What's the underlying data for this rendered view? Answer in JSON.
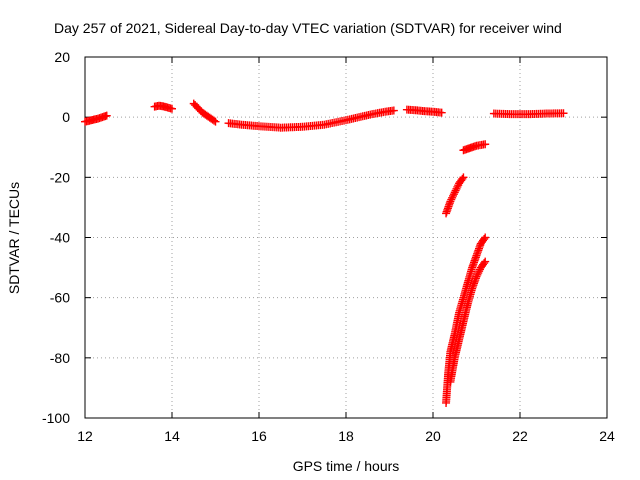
{
  "chart_data": {
    "type": "scatter",
    "title": "Day 257 of 2021, Sidereal Day-to-day VTEC variation (SDTVAR) for receiver wind",
    "xlabel": "GPS time / hours",
    "ylabel": "SDTVAR / TECUs",
    "xlim": [
      12,
      24
    ],
    "ylim": [
      -100,
      20
    ],
    "xticks": [
      "12",
      "14",
      "16",
      "18",
      "20",
      "22",
      "24"
    ],
    "yticks": [
      "20",
      "0",
      "-20",
      "-40",
      "-60",
      "-80",
      "-100"
    ],
    "grid": true,
    "marker": "plus",
    "color": "#ff0000",
    "series": [
      {
        "name": "SDTVAR",
        "segments": [
          {
            "x": [
              12.0,
              12.1,
              12.2,
              12.3,
              12.4,
              12.5
            ],
            "y": [
              -1.5,
              -1.2,
              -0.8,
              -0.5,
              0.0,
              0.5
            ]
          },
          {
            "x": [
              13.6,
              13.7,
              13.8,
              13.9,
              14.0
            ],
            "y": [
              3.5,
              3.8,
              3.6,
              3.2,
              2.8
            ]
          },
          {
            "x": [
              14.5,
              14.6,
              14.7,
              14.8,
              14.9,
              15.0
            ],
            "y": [
              4.5,
              3.0,
              1.5,
              0.5,
              -0.5,
              -1.5
            ]
          },
          {
            "x": [
              15.3,
              15.6,
              16.0,
              16.5,
              17.0,
              17.5,
              18.0,
              18.3,
              18.6,
              18.9,
              19.1
            ],
            "y": [
              -2.0,
              -2.5,
              -3.0,
              -3.5,
              -3.2,
              -2.5,
              -1.0,
              0.0,
              1.0,
              1.8,
              2.2
            ]
          },
          {
            "x": [
              19.4,
              19.6,
              19.8,
              20.0,
              20.2
            ],
            "y": [
              2.5,
              2.3,
              2.0,
              1.8,
              1.5
            ]
          },
          {
            "x": [
              20.3,
              20.4,
              20.5,
              20.6,
              20.7
            ],
            "y": [
              -32,
              -28,
              -25,
              -22,
              -20
            ]
          },
          {
            "x": [
              20.7,
              20.8,
              20.9,
              21.0,
              21.2
            ],
            "y": [
              -11,
              -10.5,
              -10,
              -9.5,
              -9
            ]
          },
          {
            "x": [
              20.3,
              20.35,
              20.4,
              20.5,
              20.6,
              20.7,
              20.8,
              20.9,
              21.0,
              21.1,
              21.2
            ],
            "y": [
              -95,
              -85,
              -78,
              -72,
              -65,
              -60,
              -55,
              -50,
              -46,
              -42,
              -40
            ]
          },
          {
            "x": [
              20.4,
              20.5,
              20.6,
              20.7,
              20.8,
              20.9,
              21.0,
              21.1,
              21.2
            ],
            "y": [
              -88,
              -80,
              -74,
              -68,
              -62,
              -57,
              -53,
              -50,
              -48
            ]
          },
          {
            "x": [
              21.4,
              21.8,
              22.2,
              22.6,
              23.0
            ],
            "y": [
              1.2,
              1.0,
              1.0,
              1.2,
              1.3
            ]
          }
        ]
      }
    ]
  }
}
